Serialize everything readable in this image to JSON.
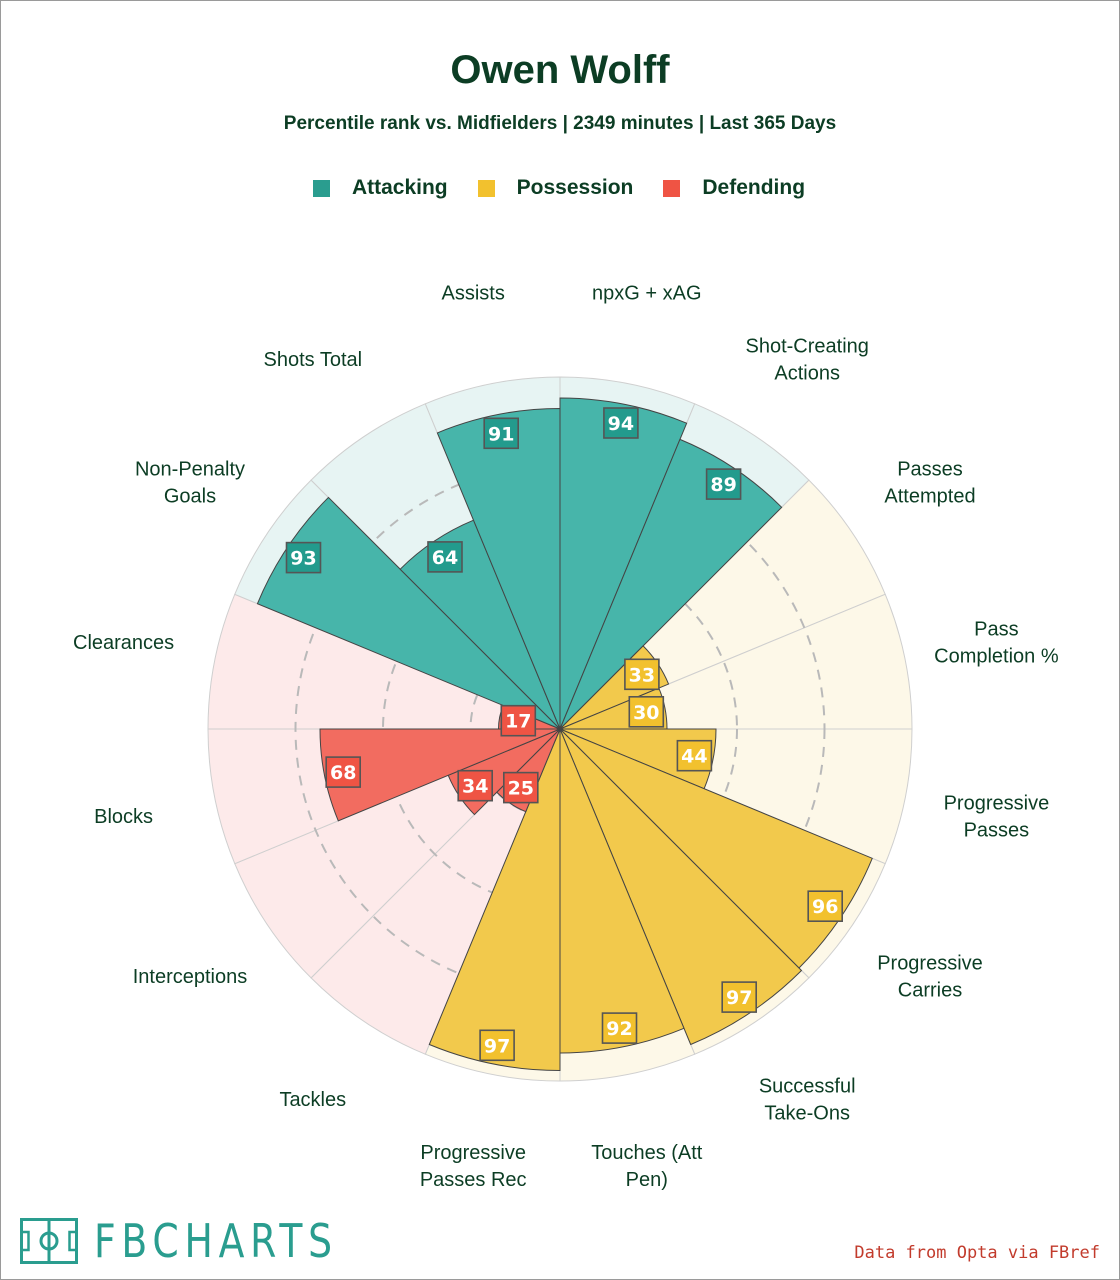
{
  "header": {
    "title": "Owen Wolff",
    "subtitle": "Percentile rank vs. Midfielders | 2349 minutes | Last 365 Days"
  },
  "legend": [
    {
      "label": "Attacking",
      "color": "#2a9d8f"
    },
    {
      "label": "Possession",
      "color": "#f2c12e"
    },
    {
      "label": "Defending",
      "color": "#ef5444"
    }
  ],
  "chart_data": {
    "type": "radar-pizza",
    "title": "Owen Wolff",
    "subtitle": "Percentile rank vs. Midfielders | 2349 minutes | Last 365 Days",
    "range": [
      0,
      100
    ],
    "start_direction": "top, clockwise",
    "categories": [
      {
        "name": "Attacking",
        "bar_color": "#47b5aa",
        "bg_color": "#e7f4f3",
        "box_color": "#239b8d"
      },
      {
        "name": "Possession",
        "bar_color": "#f2c94c",
        "bg_color": "#fdf8e8",
        "box_color": "#f2c12e"
      },
      {
        "name": "Defending",
        "bar_color": "#f26c60",
        "bg_color": "#fdeaea",
        "box_color": "#ef5444"
      }
    ],
    "metrics": [
      {
        "label": [
          "npxG + xAG"
        ],
        "value": 94,
        "group": "Attacking"
      },
      {
        "label": [
          "Shot-Creating",
          "Actions"
        ],
        "value": 89,
        "group": "Attacking"
      },
      {
        "label": [
          "Passes",
          "Attempted"
        ],
        "value": 33,
        "group": "Possession"
      },
      {
        "label": [
          "Pass",
          "Completion %"
        ],
        "value": 30,
        "group": "Possession"
      },
      {
        "label": [
          "Progressive",
          "Passes"
        ],
        "value": 44,
        "group": "Possession"
      },
      {
        "label": [
          "Progressive",
          "Carries"
        ],
        "value": 96,
        "group": "Possession"
      },
      {
        "label": [
          "Successful",
          "Take-Ons"
        ],
        "value": 97,
        "group": "Possession"
      },
      {
        "label": [
          "Touches (Att",
          "Pen)"
        ],
        "value": 92,
        "group": "Possession"
      },
      {
        "label": [
          "Progressive",
          "Passes Rec"
        ],
        "value": 97,
        "group": "Possession"
      },
      {
        "label": [
          "Tackles"
        ],
        "value": 25,
        "group": "Defending"
      },
      {
        "label": [
          "Interceptions"
        ],
        "value": 34,
        "group": "Defending"
      },
      {
        "label": [
          "Blocks"
        ],
        "value": 68,
        "group": "Defending"
      },
      {
        "label": [
          "Clearances"
        ],
        "value": 17,
        "group": "Defending"
      },
      {
        "label": [
          "Non-Penalty",
          "Goals"
        ],
        "value": 93,
        "group": "Attacking"
      },
      {
        "label": [
          "Shots Total"
        ],
        "value": 64,
        "group": "Attacking"
      },
      {
        "label": [
          "Assists"
        ],
        "value": 91,
        "group": "Attacking"
      }
    ]
  },
  "footer": {
    "brand": "FBCHARTS",
    "credit": "Data from Opta via FBref"
  }
}
